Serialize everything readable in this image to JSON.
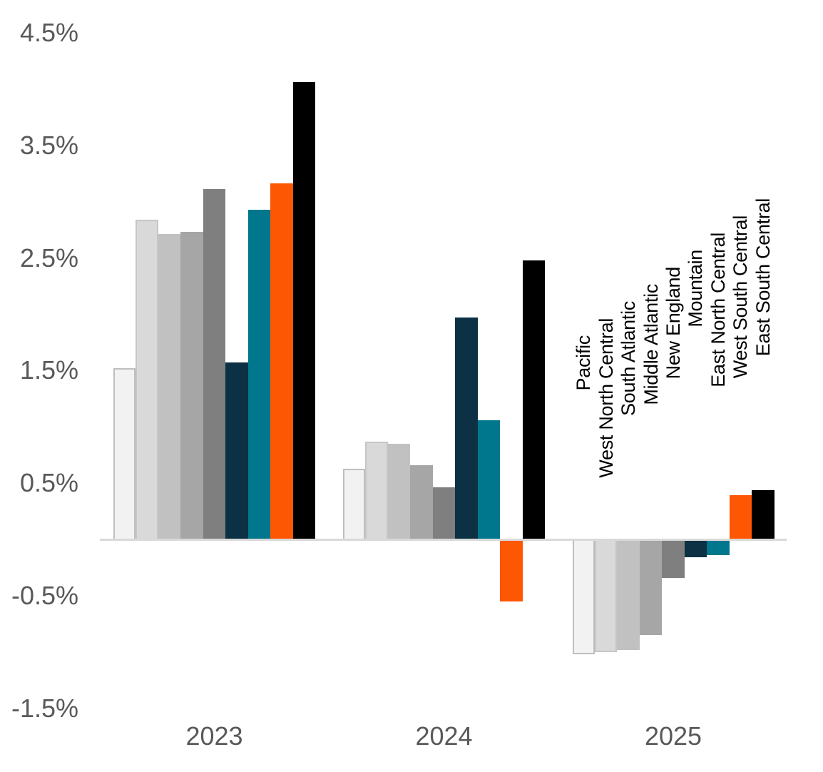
{
  "chart_data": {
    "type": "bar",
    "title": "",
    "categories": [
      "2023",
      "2024",
      "2025"
    ],
    "series": [
      {
        "name": "Pacific",
        "color": "#f2f2f2",
        "border_color": "#bfbfbf",
        "values": [
          1.52,
          0.63,
          -1.02
        ]
      },
      {
        "name": "West North Central",
        "color": "#d9d9d9",
        "border_color": "#c6c6c6",
        "values": [
          2.84,
          0.87,
          -1.0
        ]
      },
      {
        "name": "South Atlantic",
        "color": "#c1c1c1",
        "border_color": "",
        "values": [
          2.71,
          0.85,
          -0.98
        ]
      },
      {
        "name": "Middle Atlantic",
        "color": "#a6a6a6",
        "border_color": "",
        "values": [
          2.73,
          0.66,
          -0.85
        ]
      },
      {
        "name": "New England",
        "color": "#7f7f7f",
        "border_color": "",
        "values": [
          3.11,
          0.46,
          -0.34
        ]
      },
      {
        "name": "Mountain",
        "color": "#0d3144",
        "border_color": "",
        "values": [
          1.57,
          1.97,
          -0.16
        ]
      },
      {
        "name": "East North Central",
        "color": "#00778c",
        "border_color": "",
        "values": [
          2.93,
          1.06,
          -0.14
        ]
      },
      {
        "name": "West South Central",
        "color": "#fe5703",
        "border_color": "",
        "values": [
          3.16,
          -0.55,
          0.39
        ]
      },
      {
        "name": "East South Central",
        "color": "#000000",
        "border_color": "",
        "values": [
          4.06,
          2.48,
          0.44
        ]
      }
    ],
    "y_axis": {
      "tick_labels": [
        "4.5%",
        "3.5%",
        "2.5%",
        "1.5%",
        "0.5%",
        "-0.5%",
        "-1.5%"
      ],
      "tick_values": [
        4.5,
        3.5,
        2.5,
        1.5,
        0.5,
        -0.5,
        -1.5
      ],
      "min": -1.5,
      "max": 4.5,
      "unit": "%",
      "grid": false
    },
    "x_axis": {
      "labels": [
        "2023",
        "2024",
        "2025"
      ]
    },
    "legend": {
      "position": "rotated-labels-above-last-group",
      "entries": [
        "Pacific",
        "West North Central",
        "South Atlantic",
        "Middle Atlantic",
        "New England",
        "Mountain",
        "East North Central",
        "West South Central",
        "East South Central"
      ]
    }
  },
  "colors": {
    "background": "#ffffff",
    "axis_text": "#595959",
    "axis_line": "#d9d9d9",
    "series_label_text": "#000000"
  }
}
